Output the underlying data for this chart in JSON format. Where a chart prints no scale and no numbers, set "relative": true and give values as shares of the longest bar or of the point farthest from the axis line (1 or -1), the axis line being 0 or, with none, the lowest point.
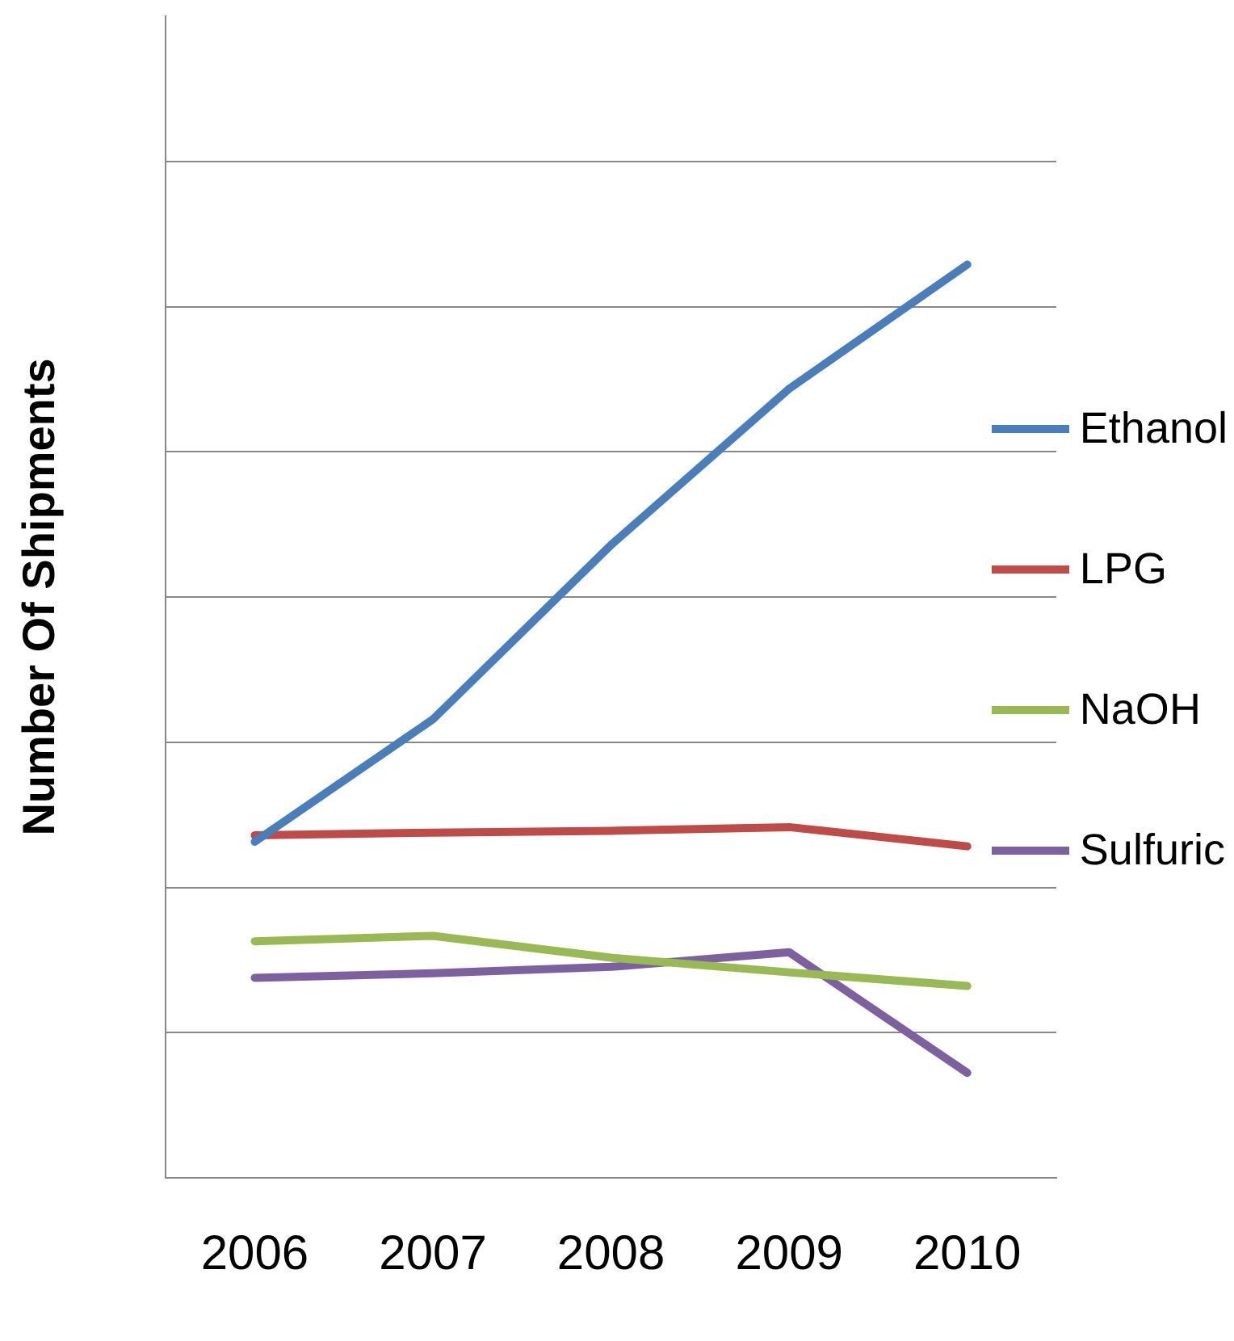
{
  "chart_data": {
    "type": "line",
    "ylabel": "Number Of Shipments",
    "relative": true,
    "grid": "y",
    "legend": "right",
    "marker": "none",
    "categories": [
      "2006",
      "2007",
      "2008",
      "2009",
      "2010"
    ],
    "series": [
      {
        "name": "Ethanol",
        "color": "#4a7ebb",
        "values": [
          0.368,
          0.502,
          0.693,
          0.864,
          1
        ]
      },
      {
        "name": "LPG",
        "color": "#be4b48",
        "values": [
          0.375,
          0.378,
          0.38,
          0.384,
          0.363
        ]
      },
      {
        "name": "NaOH",
        "color": "#98b954",
        "values": [
          0.259,
          0.265,
          0.241,
          0.225,
          0.21
        ]
      },
      {
        "name": "Sulfuric",
        "color": "#7d60a0",
        "values": [
          0.219,
          0.224,
          0.231,
          0.247,
          0.115
        ]
      }
    ]
  }
}
